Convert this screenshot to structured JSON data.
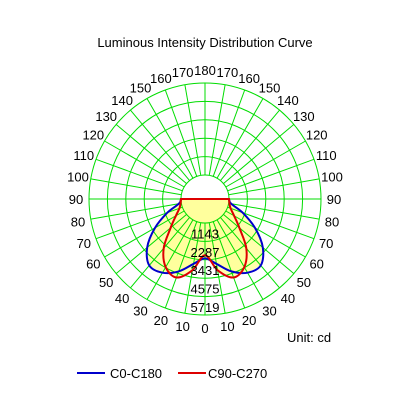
{
  "chart_data": {
    "type": "polar",
    "title": "Luminous Intensity Distribution Curve",
    "unit_label": "Unit: cd",
    "grid": true,
    "grid_color": "#00dd00",
    "fill_color": "#ffff99",
    "r_ticks": [
      "1143",
      "2287",
      "3431",
      "4575",
      "5719"
    ],
    "r_max": 5719,
    "angle_labels_left": [
      "0",
      "10",
      "20",
      "30",
      "40",
      "50",
      "60",
      "70",
      "80",
      "90",
      "100",
      "110",
      "120",
      "130",
      "140",
      "150",
      "160",
      "170",
      "180"
    ],
    "angle_labels_right": [
      "10",
      "20",
      "30",
      "40",
      "50",
      "60",
      "70",
      "80",
      "90",
      "100",
      "110",
      "120",
      "130",
      "140",
      "150",
      "160",
      "170"
    ],
    "angles": [
      0,
      10,
      20,
      30,
      40,
      50,
      60,
      70,
      80,
      90
    ],
    "series": [
      {
        "name": "C0-C180",
        "color": "#0000cc",
        "values": [
          2200,
          2600,
          3300,
          3800,
          3900,
          3200,
          2100,
          1000,
          150,
          0
        ]
      },
      {
        "name": "C90-C270",
        "color": "#dd0000",
        "values": [
          2000,
          3000,
          3700,
          3400,
          2500,
          1300,
          600,
          200,
          50,
          0
        ]
      }
    ],
    "legend_position": "bottom"
  }
}
